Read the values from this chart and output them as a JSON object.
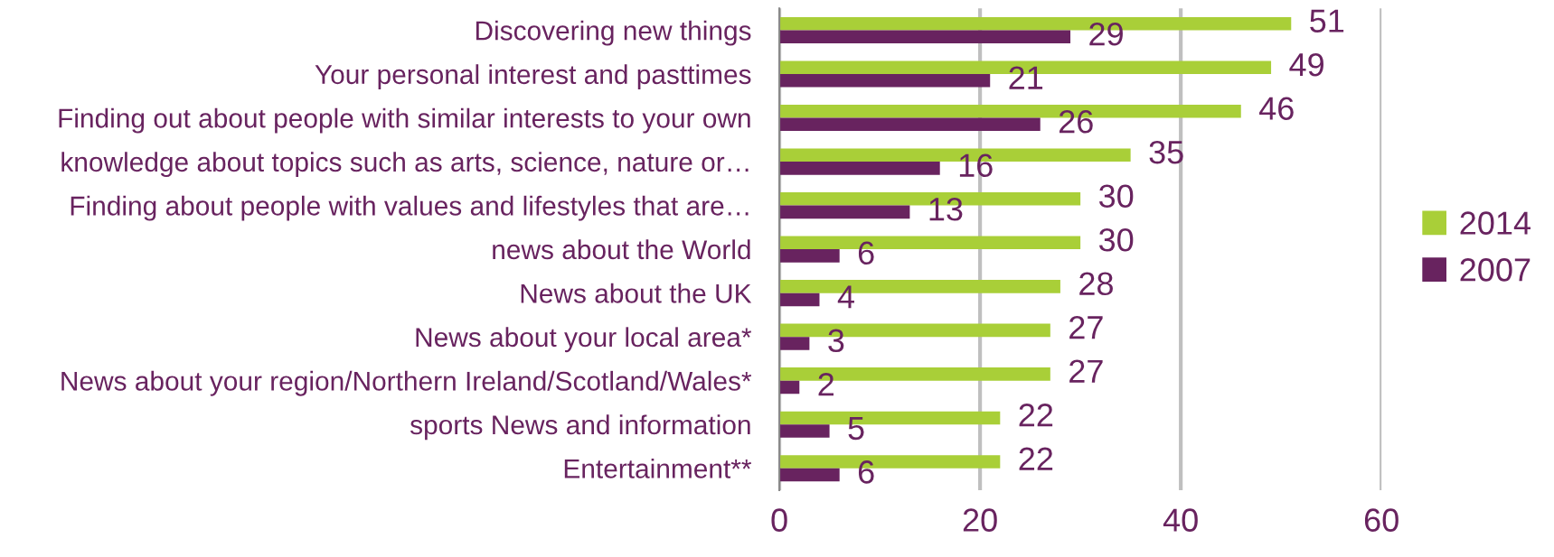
{
  "chart_data": {
    "type": "bar",
    "orientation": "horizontal",
    "categories": [
      "Discovering new things",
      "Your personal interest and pasttimes",
      "Finding out about people with similar interests to your own",
      "knowledge about topics such as arts, science, nature or…",
      "Finding about people with values and lifestyles that are…",
      "news about the World",
      "News about the UK",
      "News about your local area*",
      "News about your region/Northern Ireland/Scotland/Wales*",
      "sports News and information",
      "Entertainment**"
    ],
    "series": [
      {
        "name": "2014",
        "color": "#a9cf38",
        "values": [
          51,
          49,
          46,
          35,
          30,
          30,
          28,
          27,
          27,
          22,
          22
        ]
      },
      {
        "name": "2007",
        "color": "#68235f",
        "values": [
          29,
          21,
          26,
          16,
          13,
          6,
          4,
          3,
          2,
          5,
          6
        ]
      }
    ],
    "xlim": [
      0,
      60
    ],
    "xticks": [
      0,
      20,
      40,
      60
    ],
    "grid": "x",
    "legend": "right",
    "data_labels": true
  }
}
